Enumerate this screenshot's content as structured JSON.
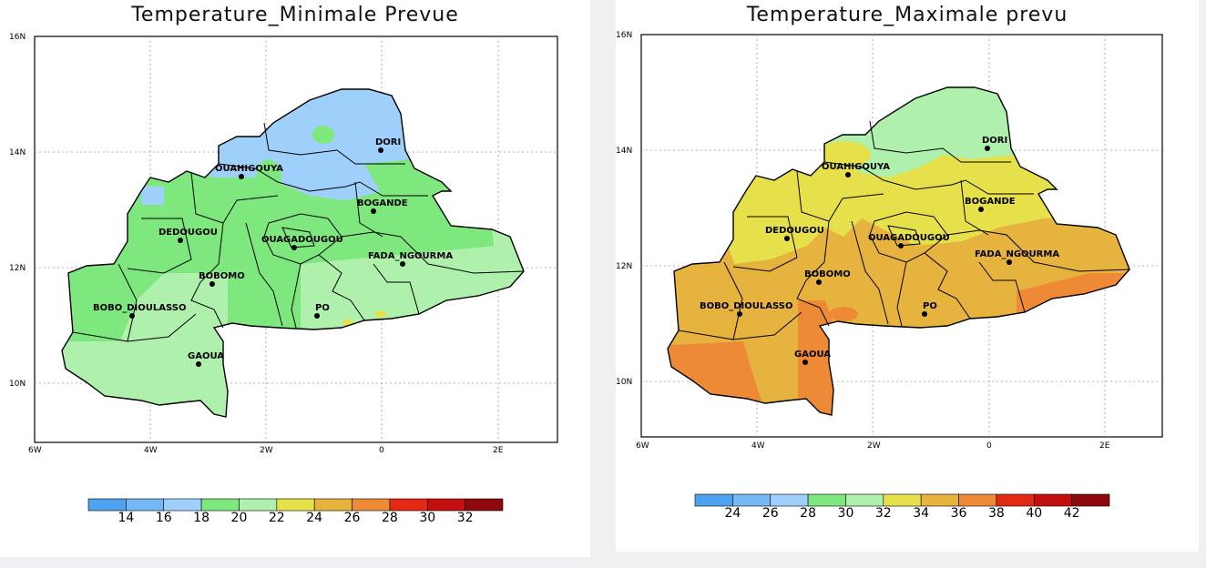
{
  "maps": [
    {
      "id": "tmin",
      "title": "Temperature_Minimale Prevue",
      "lat_labels": [
        "16N",
        "14N",
        "12N",
        "10N"
      ],
      "lon_labels": [
        "6W",
        "4W",
        "2W",
        "0",
        "2E"
      ],
      "cities": [
        "DORI",
        "OUAHIGOUYA",
        "BOGANDE",
        "DEDOUGOU",
        "OUAGADOUGOU",
        "FADA_NGOURMA",
        "BOBOMO",
        "BOBO_DIOULASSO",
        "PO",
        "GAOUA"
      ],
      "colorbar_colors": [
        "#4fa3ee",
        "#74b8f4",
        "#9fd0fb",
        "#7ee87e",
        "#aef0ac",
        "#e6e04a",
        "#e6b33f",
        "#ee8a35",
        "#e32a14",
        "#c30f0f",
        "#8e0a0a"
      ],
      "colorbar_labels": [
        "14",
        "16",
        "18",
        "20",
        "22",
        "24",
        "26",
        "28",
        "30",
        "32"
      ]
    },
    {
      "id": "tmax",
      "title": "Temperature_Maximale prevu",
      "lat_labels": [
        "16N",
        "14N",
        "12N",
        "10N"
      ],
      "lon_labels": [
        "6W",
        "4W",
        "2W",
        "0",
        "2E"
      ],
      "cities": [
        "DORI",
        "OUAHIGOUYA",
        "BOGANDE",
        "DEDOUGOU",
        "OUAGADOUGOU",
        "FADA_NGOURMA",
        "BOBOMO",
        "BOBO_DIOULASSO",
        "PO",
        "GAOUA"
      ],
      "colorbar_colors": [
        "#4fa3ee",
        "#74b8f4",
        "#9fd0fb",
        "#7ee87e",
        "#aef0ac",
        "#e6e04a",
        "#e6b33f",
        "#ee8a35",
        "#e32a14",
        "#c30f0f",
        "#8e0a0a"
      ],
      "colorbar_labels": [
        "24",
        "26",
        "28",
        "30",
        "32",
        "34",
        "36",
        "38",
        "40",
        "42"
      ]
    }
  ]
}
